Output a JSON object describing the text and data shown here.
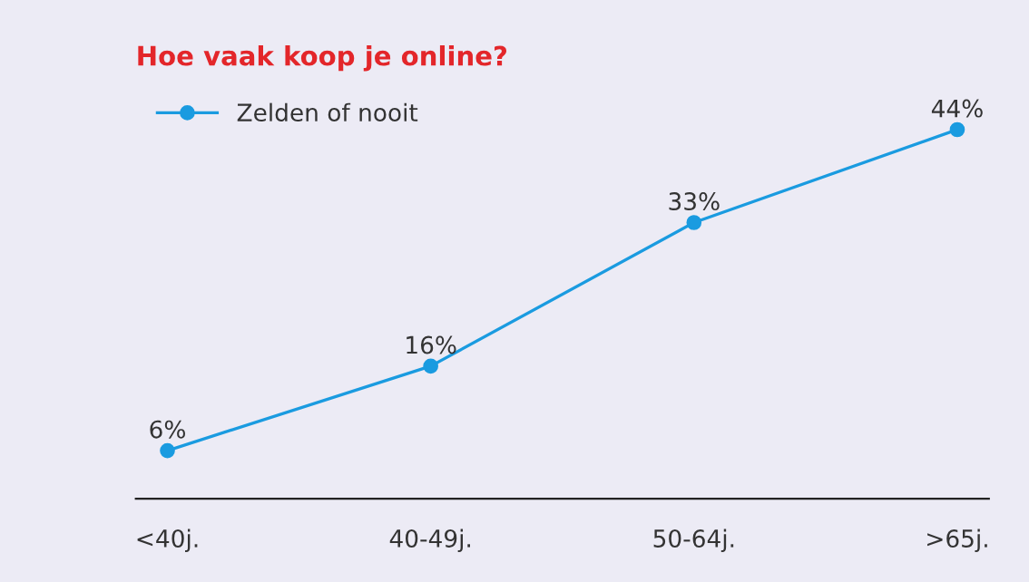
{
  "chart_data": {
    "type": "line",
    "title": "Hoe vaak koop je online?",
    "categories": [
      "<40j.",
      "40-49j.",
      "50-64j.",
      ">65j."
    ],
    "series": [
      {
        "name": "Zelden of nooit",
        "color": "#1a9be0",
        "values": [
          6,
          16,
          33,
          44
        ],
        "value_labels": [
          "6%",
          "16%",
          "33%",
          "44%"
        ]
      }
    ],
    "tick_labels": "x",
    "legend": "top left",
    "marker": "circle",
    "line_style": "solid",
    "grid": false
  }
}
